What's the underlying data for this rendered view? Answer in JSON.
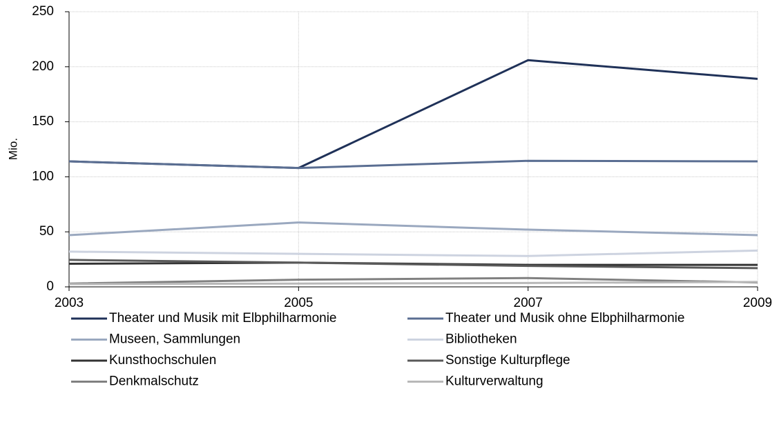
{
  "chart_data": {
    "type": "line",
    "y_label": "Mio.",
    "x": [
      2003,
      2005,
      2007,
      2009
    ],
    "xlim": [
      2003,
      2009
    ],
    "xticks": [
      2003,
      2005,
      2007,
      2009
    ],
    "ylim": [
      0,
      250
    ],
    "yticks": [
      0,
      50,
      100,
      150,
      200,
      250
    ],
    "grid": true,
    "series": [
      {
        "name": "Theater und Musik mit Elbphilharmonie",
        "color": "#1f3158",
        "values": [
          114,
          108,
          206,
          189
        ]
      },
      {
        "name": "Theater und Musik ohne Elbphilharmonie",
        "color": "#5a6e92",
        "values": [
          114,
          108,
          114.5,
          114
        ]
      },
      {
        "name": "Museen, Sammlungen",
        "color": "#9aa8bf",
        "values": [
          47,
          58.5,
          52,
          47
        ]
      },
      {
        "name": "Bibliotheken",
        "color": "#cdd3e0",
        "values": [
          32,
          30,
          28,
          33
        ]
      },
      {
        "name": "Kunsthochschulen",
        "color": "#333333",
        "values": [
          21,
          22,
          20,
          20
        ]
      },
      {
        "name": "Sonstige Kulturpflege",
        "color": "#595959",
        "values": [
          24.5,
          22,
          19,
          17
        ]
      },
      {
        "name": "Denkmalschutz",
        "color": "#808080",
        "values": [
          3,
          6.5,
          8,
          4
        ]
      },
      {
        "name": "Kulturverwaltung",
        "color": "#b8b8b8",
        "values": [
          2.5,
          3,
          3.5,
          4.5
        ]
      }
    ]
  }
}
